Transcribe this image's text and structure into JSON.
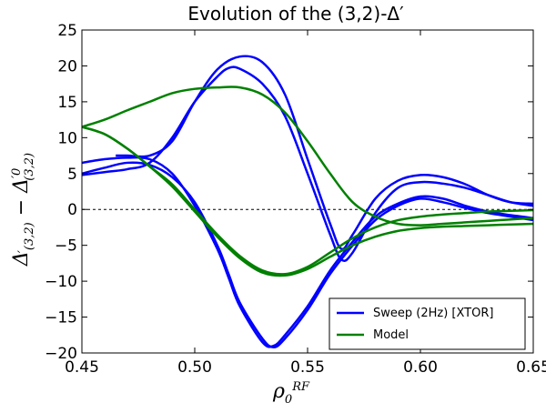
{
  "chart_data": {
    "type": "line",
    "title": "Evolution of the (3,2)-Δ′",
    "xlabel": "ρ0RF",
    "ylabel": "Δ′(3,2) − Δ′0(3,2)",
    "xlim": [
      0.45,
      0.65
    ],
    "ylim": [
      -20,
      25
    ],
    "xticks": [
      "0.45",
      "0.50",
      "0.55",
      "0.60",
      "0.65"
    ],
    "yticks": [
      "−20",
      "−15",
      "−10",
      "−5",
      "0",
      "5",
      "10",
      "15",
      "20",
      "25"
    ],
    "xtick_values": [
      0.45,
      0.5,
      0.55,
      0.6,
      0.65
    ],
    "ytick_values": [
      -20,
      -15,
      -10,
      -5,
      0,
      5,
      10,
      15,
      20,
      25
    ],
    "grid": false,
    "legend_position": "bottom-right",
    "reference_line": {
      "y": 0,
      "style": "dashed",
      "color": "#000000"
    },
    "series": [
      {
        "name": "Sweep (2Hz) [XTOR]",
        "color": "#0000ff",
        "curves": [
          {
            "x": [
              0.45,
              0.46,
              0.47,
              0.48,
              0.49,
              0.5,
              0.51,
              0.515,
              0.52,
              0.53,
              0.535,
              0.54,
              0.55,
              0.56,
              0.57,
              0.58,
              0.59,
              0.6,
              0.61,
              0.62,
              0.63,
              0.64,
              0.65
            ],
            "y": [
              5.0,
              5.8,
              6.5,
              6.2,
              4.5,
              1.0,
              -5.0,
              -9.0,
              -13.0,
              -18.0,
              -19.2,
              -18.0,
              -14.0,
              -9.0,
              -5.0,
              -1.5,
              0.5,
              1.5,
              1.0,
              0.2,
              -0.5,
              -1.0,
              -1.5
            ]
          },
          {
            "x": [
              0.45,
              0.46,
              0.47,
              0.48,
              0.49,
              0.5,
              0.51,
              0.515,
              0.52,
              0.53,
              0.535,
              0.54,
              0.55,
              0.56,
              0.57,
              0.58,
              0.59,
              0.6,
              0.61,
              0.62,
              0.63,
              0.64,
              0.65
            ],
            "y": [
              6.5,
              7.0,
              7.2,
              7.0,
              5.0,
              0.5,
              -5.5,
              -9.5,
              -13.5,
              -18.5,
              -19.0,
              -17.5,
              -13.5,
              -8.5,
              -4.5,
              -1.0,
              0.8,
              1.8,
              1.5,
              0.5,
              -0.3,
              -0.8,
              -1.2
            ]
          },
          {
            "x": [
              0.465,
              0.47,
              0.48,
              0.49,
              0.5,
              0.51,
              0.52,
              0.53,
              0.54,
              0.55,
              0.56,
              0.565,
              0.57,
              0.58,
              0.59,
              0.6,
              0.61,
              0.62,
              0.63,
              0.64,
              0.65
            ],
            "y": [
              7.5,
              7.5,
              7.5,
              9.5,
              15.0,
              19.5,
              21.3,
              20.5,
              16.0,
              7.0,
              -2.0,
              -5.5,
              -3.5,
              1.5,
              4.0,
              4.8,
              4.5,
              3.5,
              2.0,
              1.0,
              0.8
            ]
          },
          {
            "x": [
              0.45,
              0.46,
              0.47,
              0.48,
              0.49,
              0.5,
              0.51,
              0.515,
              0.52,
              0.53,
              0.54,
              0.55,
              0.56,
              0.565,
              0.57,
              0.58,
              0.59,
              0.6,
              0.61,
              0.62,
              0.63,
              0.64,
              0.65
            ],
            "y": [
              4.8,
              5.2,
              5.6,
              6.5,
              10.0,
              15.0,
              18.5,
              19.7,
              19.6,
              17.5,
              13.0,
              5.0,
              -3.5,
              -7.0,
              -6.0,
              -0.5,
              3.0,
              3.8,
              3.6,
              3.0,
              2.0,
              1.0,
              0.5
            ]
          }
        ]
      },
      {
        "name": "Model",
        "color": "#008000",
        "curves": [
          {
            "x": [
              0.45,
              0.46,
              0.47,
              0.48,
              0.49,
              0.5,
              0.51,
              0.52,
              0.53,
              0.54,
              0.55,
              0.56,
              0.57,
              0.58,
              0.59,
              0.6,
              0.61,
              0.62,
              0.63,
              0.64,
              0.65
            ],
            "y": [
              11.5,
              12.5,
              13.8,
              15.0,
              16.2,
              16.8,
              17.0,
              17.0,
              16.0,
              13.5,
              9.5,
              5.0,
              1.0,
              -1.0,
              -2.0,
              -2.2,
              -2.0,
              -1.8,
              -1.6,
              -1.4,
              -1.2
            ]
          },
          {
            "x": [
              0.45,
              0.46,
              0.47,
              0.48,
              0.49,
              0.5,
              0.51,
              0.52,
              0.53,
              0.54,
              0.55,
              0.56,
              0.57,
              0.58,
              0.59,
              0.6,
              0.61,
              0.62,
              0.63,
              0.64,
              0.65
            ],
            "y": [
              11.5,
              10.5,
              8.5,
              6.0,
              3.5,
              0.0,
              -3.5,
              -6.5,
              -8.5,
              -9.0,
              -8.0,
              -6.0,
              -4.0,
              -2.5,
              -1.5,
              -1.0,
              -0.7,
              -0.5,
              -0.3,
              -0.2,
              -0.1
            ]
          },
          {
            "x": [
              0.45,
              0.46,
              0.47,
              0.48,
              0.49,
              0.5,
              0.51,
              0.52,
              0.53,
              0.54,
              0.55,
              0.56,
              0.57,
              0.58,
              0.59,
              0.6,
              0.61,
              0.62,
              0.63,
              0.64,
              0.65
            ],
            "y": [
              11.5,
              10.5,
              8.5,
              6.0,
              3.2,
              -0.3,
              -3.8,
              -6.8,
              -8.8,
              -9.2,
              -8.3,
              -6.6,
              -5.0,
              -3.8,
              -3.0,
              -2.6,
              -2.4,
              -2.3,
              -2.2,
              -2.1,
              -2.0
            ]
          }
        ]
      }
    ]
  }
}
